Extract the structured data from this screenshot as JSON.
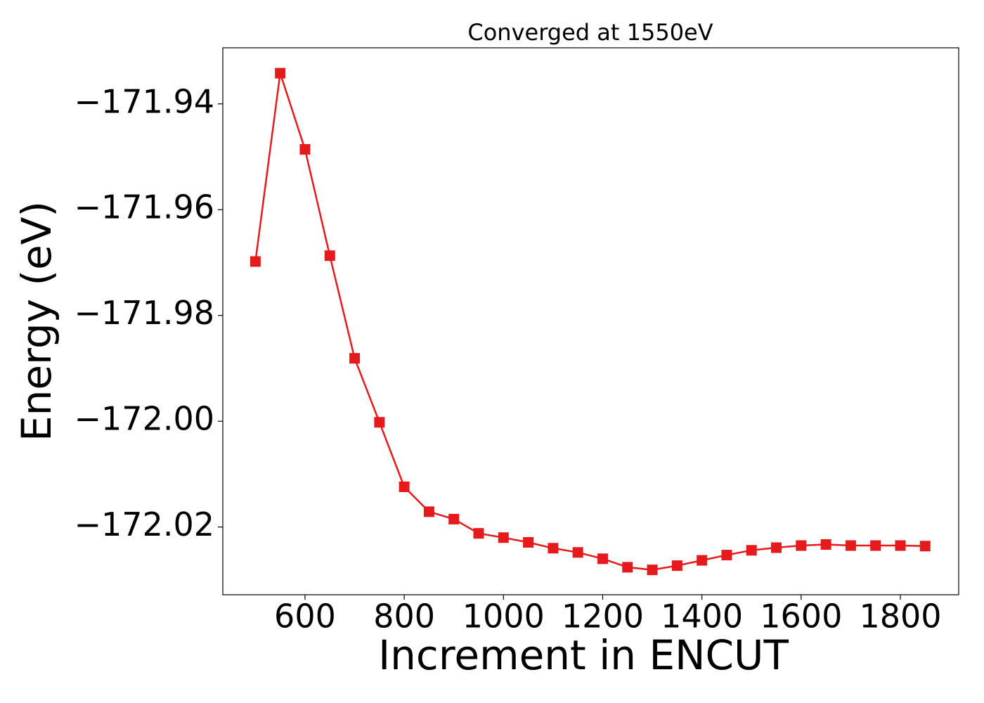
{
  "chart_data": {
    "type": "line",
    "title": "Converged at 1550eV",
    "x_label": "Increment in ENCUT",
    "y_label": "Energy (eV)",
    "x": [
      500,
      550,
      600,
      650,
      700,
      750,
      800,
      850,
      900,
      950,
      1000,
      1050,
      1100,
      1150,
      1200,
      1250,
      1300,
      1350,
      1400,
      1450,
      1500,
      1550,
      1600,
      1650,
      1700,
      1750,
      1800,
      1850
    ],
    "series": [
      {
        "name": "Energy",
        "color": "#e41a1c",
        "marker": "square",
        "values": [
          -171.9698,
          -171.9342,
          -171.9486,
          -171.9687,
          -171.9881,
          -172.0002,
          -172.0124,
          -172.0171,
          -172.0185,
          -172.0212,
          -172.022,
          -172.0229,
          -172.024,
          -172.0248,
          -172.026,
          -172.0276,
          -172.0281,
          -172.0273,
          -172.0263,
          -172.0253,
          -172.0244,
          -172.0239,
          -172.0235,
          -172.0233,
          -172.0235,
          -172.0235,
          -172.0235,
          -172.0236
        ]
      }
    ],
    "xlim": [
      434.3,
      1917.6
    ],
    "ylim": [
      -172.0328,
      -171.9294
    ],
    "xticks": [
      600,
      800,
      1000,
      1200,
      1400,
      1600,
      1800
    ],
    "yticks": [
      {
        "value": -171.94,
        "label": "−171.94"
      },
      {
        "value": -171.96,
        "label": "−171.96"
      },
      {
        "value": -171.98,
        "label": "−171.98"
      },
      {
        "value": -172.0,
        "label": "−172.00"
      },
      {
        "value": -172.02,
        "label": "−172.02"
      }
    ],
    "grid": false
  }
}
